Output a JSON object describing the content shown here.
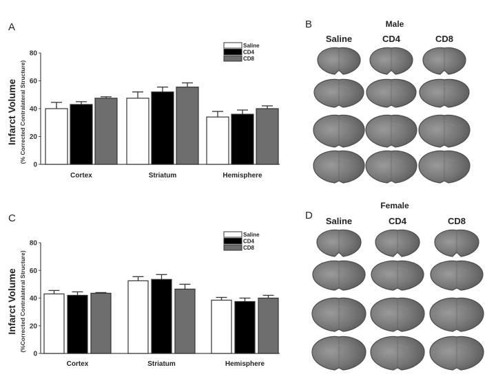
{
  "colors": {
    "Saline": "#ffffff",
    "CD4": "#000000",
    "CD8": "#6e6e6e"
  },
  "chart_data": [
    {
      "panel": "A",
      "type": "bar",
      "ylabel": "Infarct Volume",
      "ylabel_sub": "(% Corrected Contralateral Structure)",
      "ylim": [
        0,
        80
      ],
      "yticks": [
        0,
        20,
        40,
        60,
        80
      ],
      "categories": [
        "Cortex",
        "Striatum",
        "Hemisphere"
      ],
      "series": [
        {
          "name": "Saline",
          "values": [
            40,
            47.5,
            34
          ],
          "error_top": [
            44.5,
            52,
            38
          ]
        },
        {
          "name": "CD4",
          "values": [
            43,
            52,
            36
          ],
          "error_top": [
            45,
            55.5,
            39
          ]
        },
        {
          "name": "CD8",
          "values": [
            47.5,
            55.5,
            40
          ],
          "error_top": [
            48.5,
            58.5,
            42
          ]
        }
      ],
      "legend": "top-right"
    },
    {
      "panel": "C",
      "type": "bar",
      "ylabel": "Infarct Volume",
      "ylabel_sub": "(%Corrected Contralateral Structure)",
      "ylim": [
        0,
        80
      ],
      "yticks": [
        0,
        20,
        40,
        60,
        80
      ],
      "categories": [
        "Cortex",
        "Striatum",
        "Hemisphere"
      ],
      "series": [
        {
          "name": "Saline",
          "values": [
            43,
            52.5,
            38.5
          ],
          "error_top": [
            45.5,
            55.5,
            40.5
          ]
        },
        {
          "name": "CD4",
          "values": [
            42,
            53.5,
            37.5
          ],
          "error_top": [
            44.5,
            57,
            40
          ]
        },
        {
          "name": "CD8",
          "values": [
            43.5,
            46.5,
            40
          ],
          "error_top": [
            44,
            50,
            42
          ]
        }
      ],
      "legend": "top-right"
    }
  ],
  "images": [
    {
      "panel": "B",
      "title": "Male",
      "columns": [
        "Saline",
        "CD4",
        "CD8"
      ],
      "rows": 4
    },
    {
      "panel": "D",
      "title": "Female",
      "columns": [
        "Saline",
        "CD4",
        "CD8"
      ],
      "rows": 4
    }
  ]
}
